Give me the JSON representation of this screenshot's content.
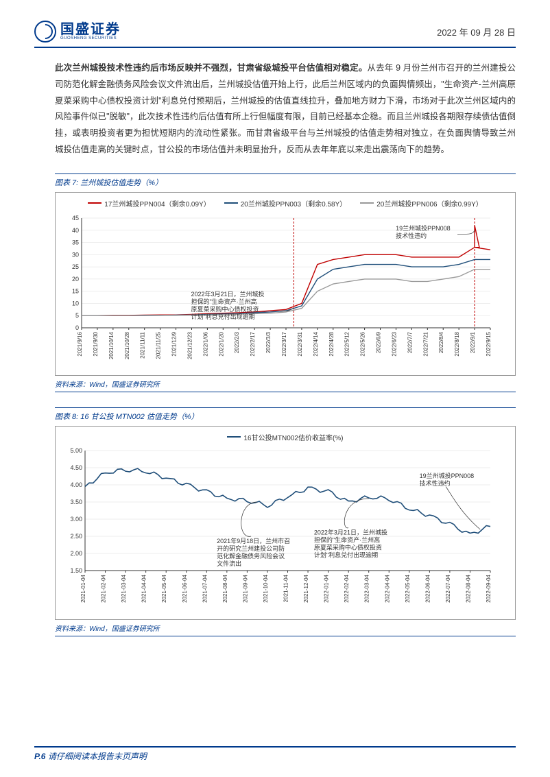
{
  "header": {
    "logo_cn": "国盛证券",
    "logo_en": "GUOSHENG SECURITIES",
    "date": "2022 年 09 月 28 日"
  },
  "paragraph": {
    "bold": "此次兰州城投技术性违约后市场反映并不强烈，甘肃省级城投平台估值相对稳定。",
    "rest": "从去年 9 月份兰州市召开的兰州建投公司防范化解金融债务风险会议文件流出后，兰州城投估值开始上行，此后兰州区域内的负面舆情频出，\"生命资产-兰州高原夏菜采购中心债权投资计划\"利息兑付预期后，兰州城投的估值直线拉升，叠加地方财力下滑，市场对于此次兰州区域内的风险事件似已\"脱敏\"，此次技术性违约后估值有所上行但幅度有限，目前已经基本企稳。而且兰州城投各期限存续债估值倒挂，或表明投资者更为担忧短期内的流动性紧张。而甘肃省级平台与兰州城投的估值走势相对独立，在负面舆情导致兰州城投估值走高的关键时点，甘公投的市场估值并未明显抬升，反而从去年年底以来走出震荡向下的趋势。"
  },
  "chart7": {
    "title": "图表 7: 兰州城投估值走势（%）",
    "source": "资料来源：Wind，国盛证券研究所",
    "type": "line",
    "legend": [
      {
        "label": "17兰州城投PPN004（剩余0.09Y）",
        "color": "#c00000"
      },
      {
        "label": "20兰州城投PPN003（剩余0.58Y）",
        "color": "#1f4e79"
      },
      {
        "label": "20兰州城投PPN006（剩余0.99Y）",
        "color": "#999999"
      }
    ],
    "ylim": [
      0,
      45
    ],
    "ytick_step": 5,
    "x_labels": [
      "2021/9/16",
      "2021/9/30",
      "2021/10/14",
      "2021/10/28",
      "2021/11/11",
      "2021/11/25",
      "2021/12/9",
      "2021/12/23",
      "2022/1/06",
      "2022/1/20",
      "2022/2/3",
      "2022/2/17",
      "2022/3/3",
      "2022/3/17",
      "2022/3/31",
      "2022/4/14",
      "2022/4/28",
      "2022/5/12",
      "2022/5/26",
      "2022/6/9",
      "2022/6/23",
      "2022/7/7",
      "2022/7/21",
      "2022/8/4",
      "2022/8/18",
      "2022/9/1",
      "2022/9/15"
    ],
    "series": [
      {
        "color": "#c00000",
        "data": [
          5,
          5,
          5.1,
          5.1,
          5.2,
          5.3,
          5.3,
          5.5,
          5.8,
          6,
          6.2,
          6.5,
          7,
          7.5,
          10,
          26,
          28,
          29,
          30,
          30,
          30,
          29,
          29,
          29,
          29,
          33,
          32
        ]
      },
      {
        "color": "#1f4e79",
        "data": [
          5,
          5,
          5,
          5,
          5.1,
          5.1,
          5.2,
          5.3,
          5.5,
          5.7,
          5.9,
          6.2,
          6.5,
          7,
          9,
          20,
          24,
          25,
          26,
          26,
          26,
          25,
          25,
          25,
          26,
          28,
          28
        ]
      },
      {
        "color": "#999999",
        "data": [
          5,
          5,
          5,
          5,
          5,
          5.1,
          5.1,
          5.2,
          5.3,
          5.4,
          5.6,
          5.8,
          6,
          6.5,
          8,
          15,
          18,
          19,
          20,
          20,
          20,
          19,
          19,
          20,
          21,
          24,
          24
        ]
      }
    ],
    "annotation1": {
      "x_index": 13.5,
      "text_lines": [
        "2022年3月21日，兰州城投",
        "担保的\"生命资产·兰州高",
        "原夏菜采购中心债权投资",
        "计划\"利息兑付出现逾期"
      ]
    },
    "annotation2": {
      "x_index": 25,
      "text_lines": [
        "19兰州城投PPN008",
        "技术性违约"
      ]
    },
    "spike": {
      "x_index": 25,
      "peak": 42
    }
  },
  "chart8": {
    "title": "图表 8:  16 甘公投 MTN002 估值走势（%）",
    "source": "资料来源：Wind，国盛证券研究所",
    "type": "line",
    "legend": [
      {
        "label": "16甘公投MTN002估价收益率(%)",
        "color": "#1f4e79"
      }
    ],
    "ylim": [
      1.5,
      5.0
    ],
    "ytick_step": 0.5,
    "x_labels": [
      "2021-01-04",
      "2021-02-04",
      "2021-03-04",
      "2021-04-04",
      "2021-05-04",
      "2021-06-04",
      "2021-07-04",
      "2021-08-04",
      "2021-09-04",
      "2021-10-04",
      "2021-11-04",
      "2021-12-04",
      "2022-01-04",
      "2022-02-04",
      "2022-03-04",
      "2022-04-04",
      "2022-05-04",
      "2022-06-04",
      "2022-07-04",
      "2022-08-04",
      "2022-09-04"
    ],
    "series": [
      {
        "color": "#1f4e79",
        "data": [
          3.95,
          4.35,
          4.45,
          4.4,
          4.2,
          4.0,
          3.8,
          3.6,
          3.55,
          3.4,
          3.65,
          3.9,
          3.8,
          3.5,
          3.65,
          3.6,
          3.3,
          3.1,
          2.85,
          2.55,
          2.8
        ]
      }
    ],
    "annotation1": {
      "x_index": 8.5,
      "y": 3.5,
      "text_lines": [
        "2021年9月18日，兰州市召",
        "开的研究兰州建投公司防",
        "范化解金融债务风险会议",
        "文件流出"
      ]
    },
    "annotation2": {
      "x_index": 14,
      "y": 3.6,
      "text_lines": [
        "2022年3月21日，兰州城投",
        "担保的\"生命资产·兰州高",
        "原夏菜采购中心债权投资",
        "计划\"利息兑付出现逾期"
      ]
    },
    "annotation3": {
      "x_index": 19.5,
      "y": 2.7,
      "text_lines": [
        "19兰州城投PPN008",
        "技术性违约"
      ]
    }
  },
  "footer": {
    "page": "P.6",
    "disclaimer": "请仔细阅读本报告末页声明"
  }
}
